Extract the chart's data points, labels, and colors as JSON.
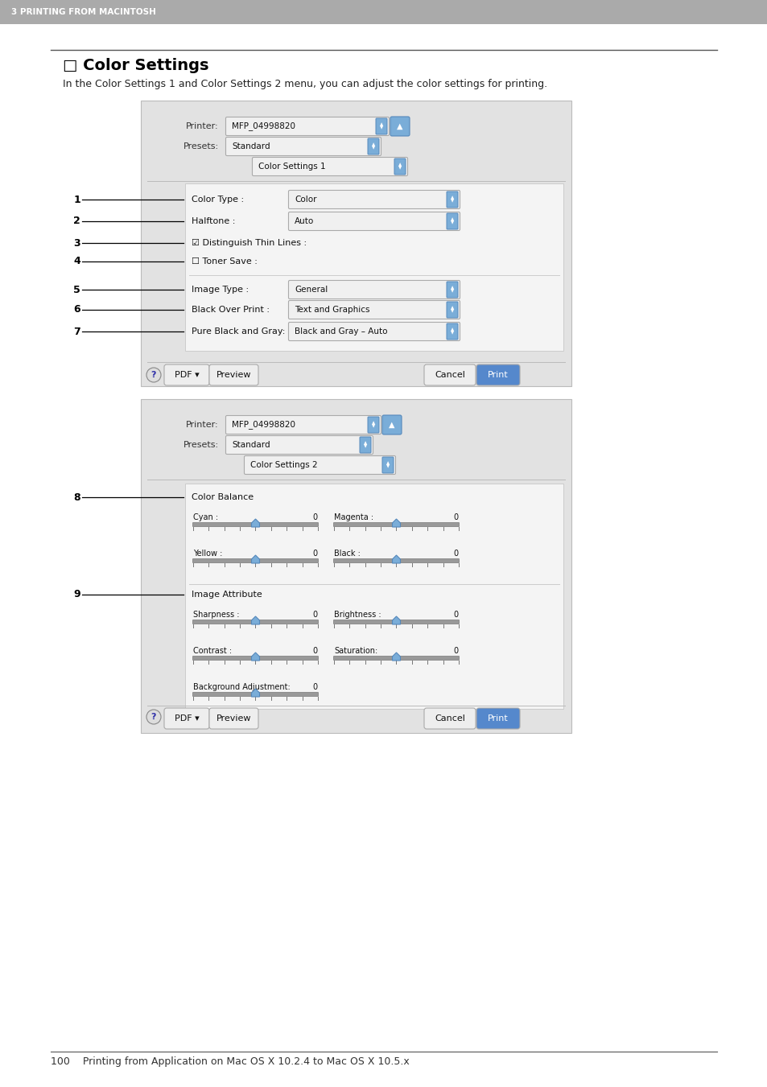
{
  "page_bg": "#ffffff",
  "header_bg": "#aaaaaa",
  "header_text": "3 PRINTING FROM MACINTOSH",
  "header_text_color": "#ffffff",
  "title": "□ Color Settings",
  "subtitle": "In the Color Settings 1 and Color Settings 2 menu, you can adjust the color settings for printing.",
  "dialog_bg": "#e2e2e2",
  "inner_panel_bg": "#ebebeb",
  "footer_text": "100    Printing from Application on Mac OS X 10.2.4 to Mac OS X 10.5.x"
}
